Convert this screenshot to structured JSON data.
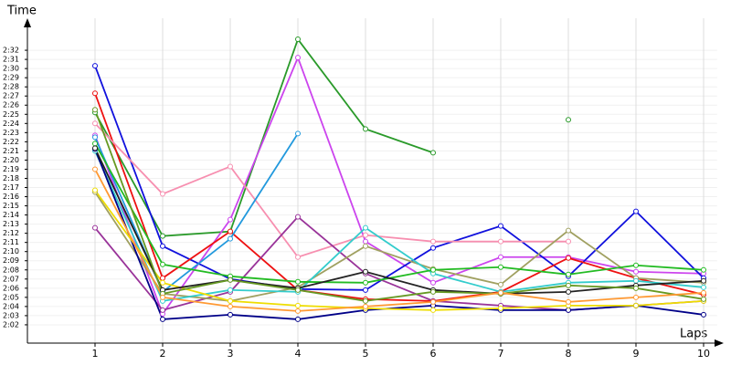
{
  "chart_data": {
    "type": "line",
    "y_label": "Time",
    "x_label": "Laps",
    "x": [
      1,
      2,
      3,
      4,
      5,
      6,
      7,
      8,
      9,
      10
    ],
    "xlim": [
      0,
      10.2
    ],
    "xticks": [
      1,
      2,
      3,
      4,
      5,
      6,
      7,
      8,
      9,
      10
    ],
    "ylim": [
      120,
      154.5
    ],
    "yticks": [
      {
        "value": 122,
        "label": "2:02"
      },
      {
        "value": 123,
        "label": "2:03"
      },
      {
        "value": 124,
        "label": "2:04"
      },
      {
        "value": 125,
        "label": "2:05"
      },
      {
        "value": 126,
        "label": "2:06"
      },
      {
        "value": 127,
        "label": "2:07"
      },
      {
        "value": 128,
        "label": "2:08"
      },
      {
        "value": 129,
        "label": "2:09"
      },
      {
        "value": 130,
        "label": "2:10"
      },
      {
        "value": 131,
        "label": "2:11"
      },
      {
        "value": 132,
        "label": "2:12"
      },
      {
        "value": 133,
        "label": "2:13"
      },
      {
        "value": 134,
        "label": "2:14"
      },
      {
        "value": 135,
        "label": "2:15"
      },
      {
        "value": 136,
        "label": "2:16"
      },
      {
        "value": 137,
        "label": "2:17"
      },
      {
        "value": 138,
        "label": "2:18"
      },
      {
        "value": 139,
        "label": "2:19"
      },
      {
        "value": 140,
        "label": "2:20"
      },
      {
        "value": 141,
        "label": "2:21"
      },
      {
        "value": 142,
        "label": "2:22"
      },
      {
        "value": 143,
        "label": "2:23"
      },
      {
        "value": 144,
        "label": "2:24"
      },
      {
        "value": 145,
        "label": "2:25"
      },
      {
        "value": 146,
        "label": "2:26"
      },
      {
        "value": 147,
        "label": "2:27"
      },
      {
        "value": 148,
        "label": "2:28"
      },
      {
        "value": 149,
        "label": "2:29"
      },
      {
        "value": 150,
        "label": "2:30"
      },
      {
        "value": 151,
        "label": "2:31"
      },
      {
        "value": 152,
        "label": "2:32"
      }
    ],
    "grid": true,
    "series": [
      {
        "color": "#2a9a2a",
        "values": [
          145.2,
          131.7,
          132.2,
          153.2,
          143.4,
          140.8,
          null,
          144.4,
          null,
          null
        ]
      },
      {
        "color": "#cc44ee",
        "values": [
          142.7,
          123.2,
          133.5,
          151.2,
          131.1,
          126.6,
          129.4,
          129.4,
          127.8,
          127.6
        ]
      },
      {
        "color": "#1111dd",
        "values": [
          150.3,
          130.6,
          127,
          125.9,
          125.8,
          130.4,
          132.8,
          127.3,
          134.4,
          127.1
        ]
      },
      {
        "color": "#ee1111",
        "values": [
          147.3,
          127.1,
          132.2,
          125.8,
          124.8,
          124.6,
          125.6,
          129.3,
          127.1,
          125.3
        ]
      },
      {
        "color": "#f78fb0",
        "values": [
          144,
          136.3,
          139.3,
          129.4,
          131.8,
          131.1,
          131.1,
          131.1,
          null,
          null
        ]
      },
      {
        "color": "#2299dd",
        "values": [
          142.5,
          125.6,
          131.4,
          142.9,
          null,
          null,
          null,
          null,
          null,
          null
        ]
      },
      {
        "color": "#993399",
        "values": [
          132.6,
          123.6,
          125.6,
          133.8,
          127.6,
          124.6,
          124.1,
          123.6,
          124.1,
          124.6
        ]
      },
      {
        "color": "#a0a060",
        "values": [
          136.5,
          125.4,
          124.6,
          126.1,
          130.6,
          128.1,
          126.4,
          132.3,
          127.1,
          126.6
        ]
      },
      {
        "color": "#33cccc",
        "values": [
          141,
          124.6,
          125.8,
          125.6,
          132.6,
          127.6,
          125.6,
          126.6,
          126.8,
          126.1
        ]
      },
      {
        "color": "#22bb22",
        "values": [
          141.8,
          128.6,
          127.3,
          126.7,
          126.6,
          128,
          128.3,
          127.5,
          128.5,
          128
        ]
      },
      {
        "color": "#000088",
        "values": [
          141.2,
          122.6,
          123.1,
          122.6,
          123.6,
          124.1,
          123.6,
          123.6,
          124.1,
          123.1
        ]
      },
      {
        "color": "#eedd00",
        "values": [
          136.7,
          126.6,
          124.6,
          124.1,
          123.8,
          123.6,
          123.8,
          124.1,
          124.1,
          124.6
        ]
      },
      {
        "color": "#222222",
        "values": [
          141.3,
          125.8,
          126.9,
          126,
          127.8,
          125.8,
          125.4,
          125.6,
          126.3,
          126.8
        ]
      },
      {
        "color": "#669922",
        "values": [
          145.5,
          125.4,
          126.9,
          125.8,
          124.6,
          125.6,
          125.4,
          126.3,
          126,
          124.8
        ]
      },
      {
        "color": "#ff9933",
        "values": [
          139,
          125,
          124,
          123.5,
          124,
          124.5,
          125.5,
          124.5,
          125,
          125.5
        ]
      }
    ]
  }
}
